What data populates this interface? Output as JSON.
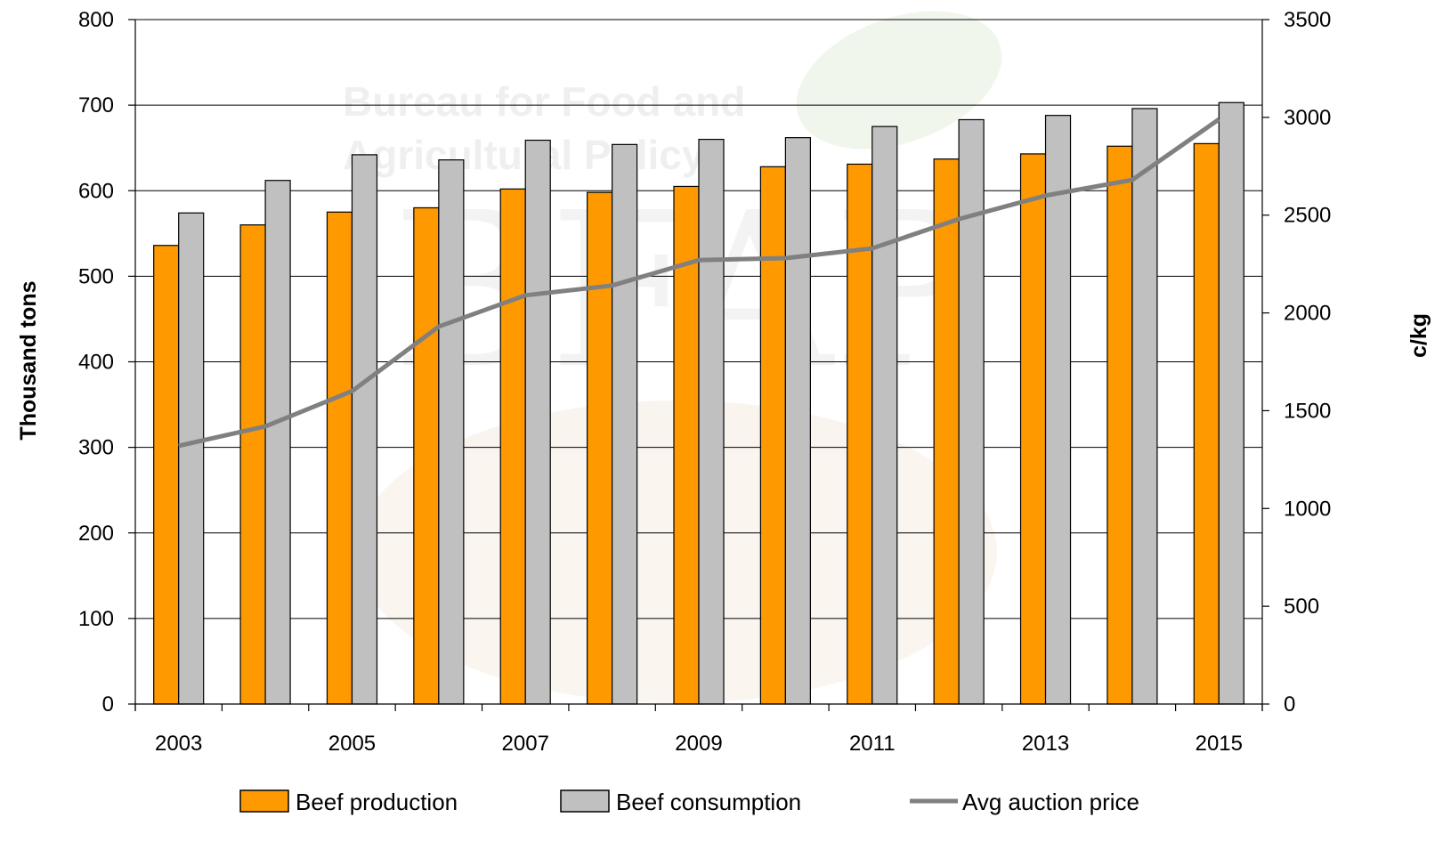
{
  "chart_data": {
    "type": "bar",
    "title": "",
    "watermark": {
      "line1": "Bureau for Food and",
      "line2": "Agricultural Policy",
      "logo": "BFAP"
    },
    "x": [
      2003,
      2004,
      2005,
      2006,
      2007,
      2008,
      2009,
      2010,
      2011,
      2012,
      2013,
      2014,
      2015
    ],
    "x_tick_labels": [
      "2003",
      "2005",
      "2007",
      "2009",
      "2011",
      "2013",
      "2015"
    ],
    "ylabel": "Thousand tons",
    "y2label": "c/kg",
    "ylim": [
      0,
      800
    ],
    "y2lim": [
      0,
      3500
    ],
    "y_ticks": [
      "0",
      "100",
      "200",
      "300",
      "400",
      "500",
      "600",
      "700",
      "800"
    ],
    "y2_ticks": [
      "0",
      "500",
      "1000",
      "1500",
      "2000",
      "2500",
      "3000",
      "3500"
    ],
    "grid": "horizontal",
    "legend_position": "bottom",
    "series": [
      {
        "name": "Beef production",
        "type": "bar",
        "axis": "left",
        "color": "#ff9900",
        "values": [
          536,
          560,
          575,
          580,
          602,
          598,
          605,
          628,
          631,
          637,
          643,
          652,
          655
        ]
      },
      {
        "name": "Beef consumption",
        "type": "bar",
        "axis": "left",
        "color": "#c0c0c0",
        "values": [
          574,
          612,
          642,
          636,
          659,
          654,
          660,
          662,
          675,
          683,
          688,
          696,
          703
        ]
      },
      {
        "name": "Avg auction price",
        "type": "line",
        "axis": "right",
        "color": "#808080",
        "values": [
          1320,
          1420,
          1600,
          1930,
          2090,
          2140,
          2270,
          2280,
          2330,
          2480,
          2600,
          2680,
          2990
        ]
      }
    ]
  }
}
